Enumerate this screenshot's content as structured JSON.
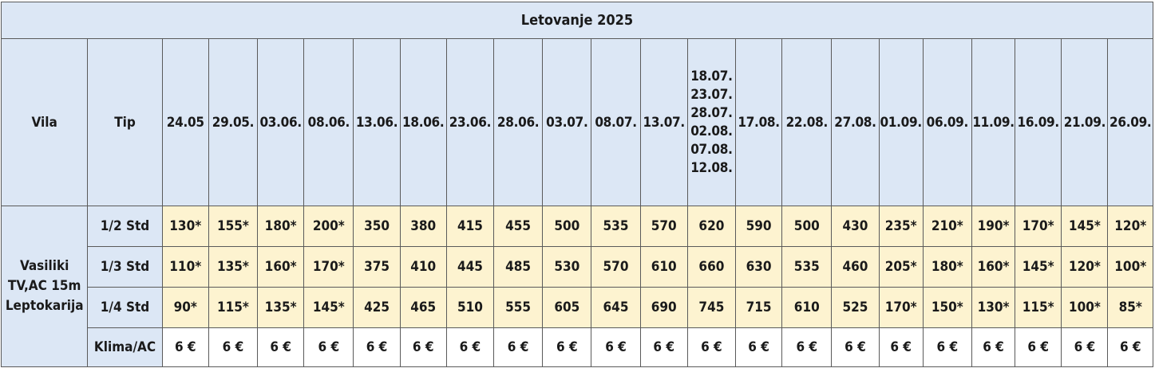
{
  "title": "Letovanje 2025",
  "header": {
    "vila": "Vila",
    "tip": "Tip",
    "dates": [
      "24.05",
      "29.05.",
      "03.06.",
      "08.06.",
      "13.06.",
      "18.06.",
      "23.06.",
      "28.06.",
      "03.07.",
      "08.07.",
      "13.07.",
      [
        "18.07.",
        "23.07.",
        "28.07.",
        "02.08.",
        "07.08.",
        "12.08."
      ],
      "17.08.",
      "22.08.",
      "27.08.",
      "01.09.",
      "06.09.",
      "11.09.",
      "16.09.",
      "21.09.",
      "26.09."
    ]
  },
  "vila": {
    "line1": "Vasiliki",
    "line2": "TV,AC 15m",
    "line3": "Leptokarija"
  },
  "rows": [
    {
      "tip": "1/2 Std",
      "prices": [
        "130*",
        "155*",
        "180*",
        "200*",
        "350",
        "380",
        "415",
        "455",
        "500",
        "535",
        "570",
        "620",
        "590",
        "500",
        "430",
        "235*",
        "210*",
        "190*",
        "170*",
        "145*",
        "120*"
      ]
    },
    {
      "tip": "1/3 Std",
      "prices": [
        "110*",
        "135*",
        "160*",
        "170*",
        "375",
        "410",
        "445",
        "485",
        "530",
        "570",
        "610",
        "660",
        "630",
        "535",
        "460",
        "205*",
        "180*",
        "160*",
        "145*",
        "120*",
        "100*"
      ]
    },
    {
      "tip": "1/4 Std",
      "prices": [
        "90*",
        "115*",
        "135*",
        "145*",
        "425",
        "465",
        "510",
        "555",
        "605",
        "645",
        "690",
        "745",
        "715",
        "610",
        "525",
        "170*",
        "150*",
        "130*",
        "115*",
        "100*",
        "85*"
      ]
    },
    {
      "tip": "Klima/AC",
      "prices": [
        "6 €",
        "6 €",
        "6 €",
        "6 €",
        "6 €",
        "6 €",
        "6 €",
        "6 €",
        "6 €",
        "6 €",
        "6 €",
        "6 €",
        "6 €",
        "6 €",
        "6 €",
        "6 €",
        "6 €",
        "6 €",
        "6 €",
        "6 €",
        "6 €"
      ]
    }
  ]
}
